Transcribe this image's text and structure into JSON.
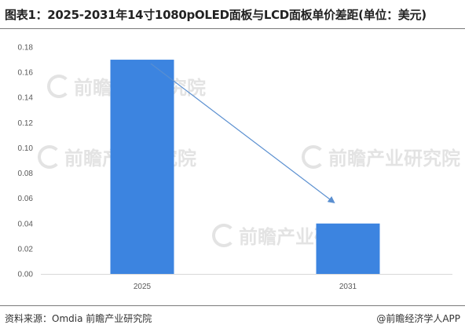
{
  "header": {
    "title": "图表1：2025-2031年14寸1080pOLED面板与LCD面板单价差距(单位：美元)"
  },
  "footer": {
    "source": "资料来源：Omdia 前瞻产业研究院",
    "credit": "@前瞻经济学人APP"
  },
  "watermark": {
    "text": "前瞻产业研究院"
  },
  "colors": {
    "bar": "#3c84e0",
    "arrow": "#5a8fd0",
    "axis": "#d9d9d9"
  },
  "chart_data": {
    "type": "bar",
    "categories": [
      "2025",
      "2031"
    ],
    "values": [
      0.17,
      0.04
    ],
    "title": "2025-2031年14寸1080pOLED面板与LCD面板单价差距(单位：美元)",
    "xlabel": "",
    "ylabel": "",
    "ylim": [
      0,
      0.18
    ],
    "yticks": [
      "0.00",
      "0.02",
      "0.04",
      "0.06",
      "0.08",
      "0.10",
      "0.12",
      "0.14",
      "0.16",
      "0.18"
    ],
    "grid": false,
    "legend": "none",
    "annotation": "downward trend arrow from 2025 bar to 2031 bar"
  }
}
